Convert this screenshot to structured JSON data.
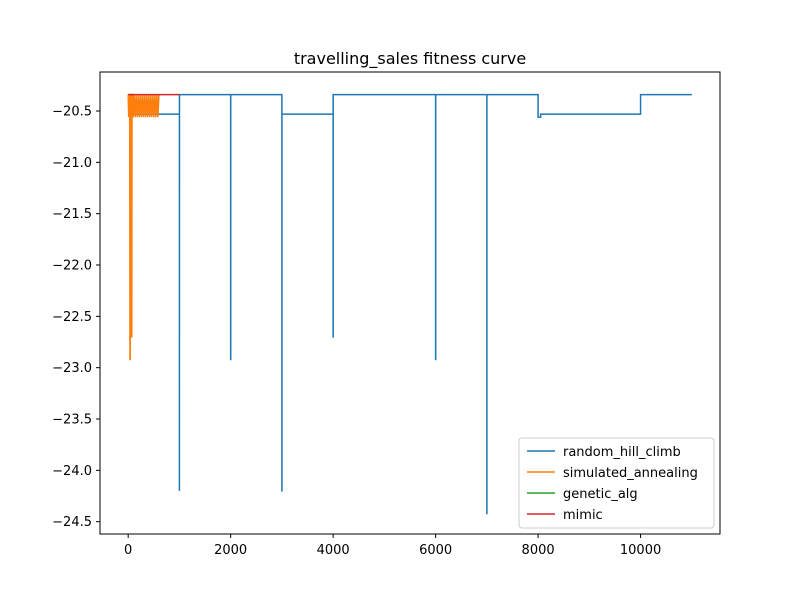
{
  "chart_data": {
    "type": "line",
    "title": "travelling_sales fitness curve",
    "xlabel": "",
    "ylabel": "",
    "xlim": [
      -550,
      11550
    ],
    "ylim": [
      -24.62,
      -20.12
    ],
    "xticks": [
      0,
      2000,
      4000,
      6000,
      8000,
      10000
    ],
    "xtick_labels": [
      "0",
      "2000",
      "4000",
      "6000",
      "8000",
      "10000"
    ],
    "yticks": [
      -20.5,
      -21.0,
      -21.5,
      -22.0,
      -22.5,
      -23.0,
      -23.5,
      -24.0,
      -24.5
    ],
    "ytick_labels": [
      "−20.5",
      "−21.0",
      "−21.5",
      "−22.0",
      "−22.5",
      "−23.0",
      "−23.5",
      "−24.0",
      "−24.5"
    ],
    "grid": false,
    "legend_position": "lower-right",
    "series": [
      {
        "name": "random_hill_climb",
        "color": "#1f77b4",
        "x": [
          0,
          1000,
          1000,
          1000,
          1001,
          1001,
          2000,
          2000,
          2001,
          2001,
          3000,
          3000,
          3001,
          3001,
          4000,
          4000,
          4001,
          4001,
          6000,
          6000,
          6001,
          6001,
          7000,
          7000,
          7001,
          7001,
          8000,
          8000,
          8050,
          8050,
          10000,
          10000,
          11000
        ],
        "y": [
          -20.53,
          -20.53,
          -24.2,
          -24.2,
          -20.34,
          -20.34,
          -20.34,
          -22.92,
          -22.92,
          -20.34,
          -20.34,
          -24.2,
          -24.2,
          -20.53,
          -20.53,
          -22.7,
          -22.7,
          -20.34,
          -20.34,
          -22.92,
          -22.92,
          -20.34,
          -20.34,
          -24.42,
          -24.42,
          -20.34,
          -20.34,
          -20.56,
          -20.56,
          -20.53,
          -20.53,
          -20.34,
          -20.34
        ]
      },
      {
        "name": "simulated_annealing",
        "color": "#ff7f0e",
        "x": [
          0,
          10,
          20,
          30,
          35,
          40,
          45,
          50,
          55,
          60,
          70,
          75,
          80,
          85,
          90,
          100,
          120,
          140,
          160,
          180,
          200,
          220,
          240,
          260,
          280,
          300,
          320,
          340,
          360,
          380,
          400,
          420,
          440,
          460,
          480,
          500,
          520,
          540,
          560,
          580,
          600
        ],
        "y": [
          -20.34,
          -20.56,
          -20.34,
          -20.56,
          -22.92,
          -22.92,
          -20.56,
          -20.34,
          -20.56,
          -22.7,
          -22.7,
          -20.56,
          -20.34,
          -20.56,
          -20.34,
          -20.56,
          -20.34,
          -20.56,
          -20.34,
          -20.56,
          -20.34,
          -20.56,
          -20.34,
          -20.56,
          -20.34,
          -20.56,
          -20.34,
          -20.56,
          -20.34,
          -20.56,
          -20.34,
          -20.56,
          -20.34,
          -20.56,
          -20.34,
          -20.56,
          -20.34,
          -20.56,
          -20.34,
          -20.56,
          -20.34
        ]
      },
      {
        "name": "genetic_alg",
        "color": "#2ca02c",
        "x": [
          0,
          100
        ],
        "y": [
          -20.34,
          -20.34
        ]
      },
      {
        "name": "mimic",
        "color": "#d62728",
        "x": [
          0,
          1000
        ],
        "y": [
          -20.34,
          -20.34
        ]
      }
    ]
  }
}
